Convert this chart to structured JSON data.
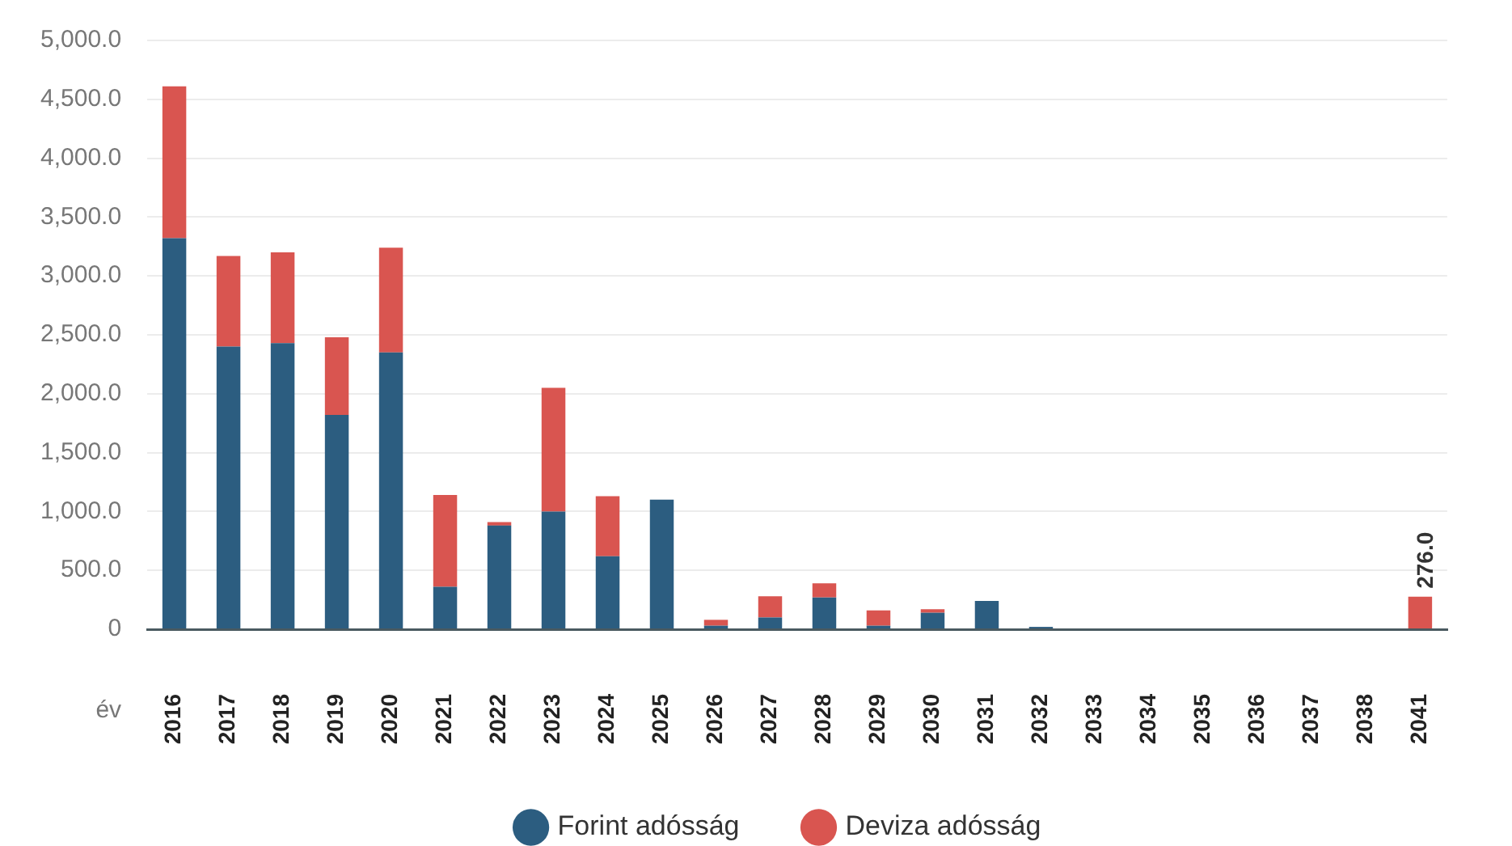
{
  "chart_data": {
    "type": "bar",
    "stacked": true,
    "xlabel": "év",
    "categories": [
      "2016",
      "2017",
      "2018",
      "2019",
      "2020",
      "2021",
      "2022",
      "2023",
      "2024",
      "2025",
      "2026",
      "2027",
      "2028",
      "2029",
      "2030",
      "2031",
      "2032",
      "2033",
      "2034",
      "2035",
      "2036",
      "2037",
      "2038",
      "2041"
    ],
    "series": [
      {
        "name": "Forint adósság",
        "color": "#2c5d80",
        "values": [
          3320,
          2400,
          2430,
          1820,
          2350,
          360,
          880,
          1000,
          620,
          1100,
          30,
          100,
          270,
          30,
          140,
          240,
          20,
          0,
          0,
          0,
          0,
          0,
          0,
          0
        ]
      },
      {
        "name": "Deviza adósság",
        "color": "#d95550",
        "values": [
          1290,
          770,
          770,
          660,
          890,
          780,
          30,
          1050,
          510,
          0,
          50,
          180,
          120,
          130,
          30,
          0,
          0,
          0,
          0,
          0,
          0,
          0,
          0,
          276
        ],
        "value_labels": [
          null,
          null,
          null,
          null,
          null,
          null,
          null,
          null,
          null,
          null,
          null,
          null,
          null,
          null,
          null,
          null,
          null,
          null,
          null,
          null,
          null,
          null,
          null,
          "276.0"
        ]
      }
    ],
    "ylim": [
      0,
      5000
    ],
    "yticks": [
      0,
      {
        "value": 500,
        "label": "500.0"
      },
      {
        "value": 1000,
        "label": "1,000.0"
      },
      {
        "value": 1500,
        "label": "1,500.0"
      },
      {
        "value": 2000,
        "label": "2,000.0"
      },
      {
        "value": 2500,
        "label": "2,500.0"
      },
      {
        "value": 3000,
        "label": "3,000.0"
      },
      {
        "value": 3500,
        "label": "3,500.0"
      },
      {
        "value": 4000,
        "label": "4,000.0"
      },
      {
        "value": 4500,
        "label": "4,500.0"
      },
      {
        "value": 5000,
        "label": "5,000.0"
      }
    ],
    "grid": "y",
    "legend": "bottom"
  }
}
